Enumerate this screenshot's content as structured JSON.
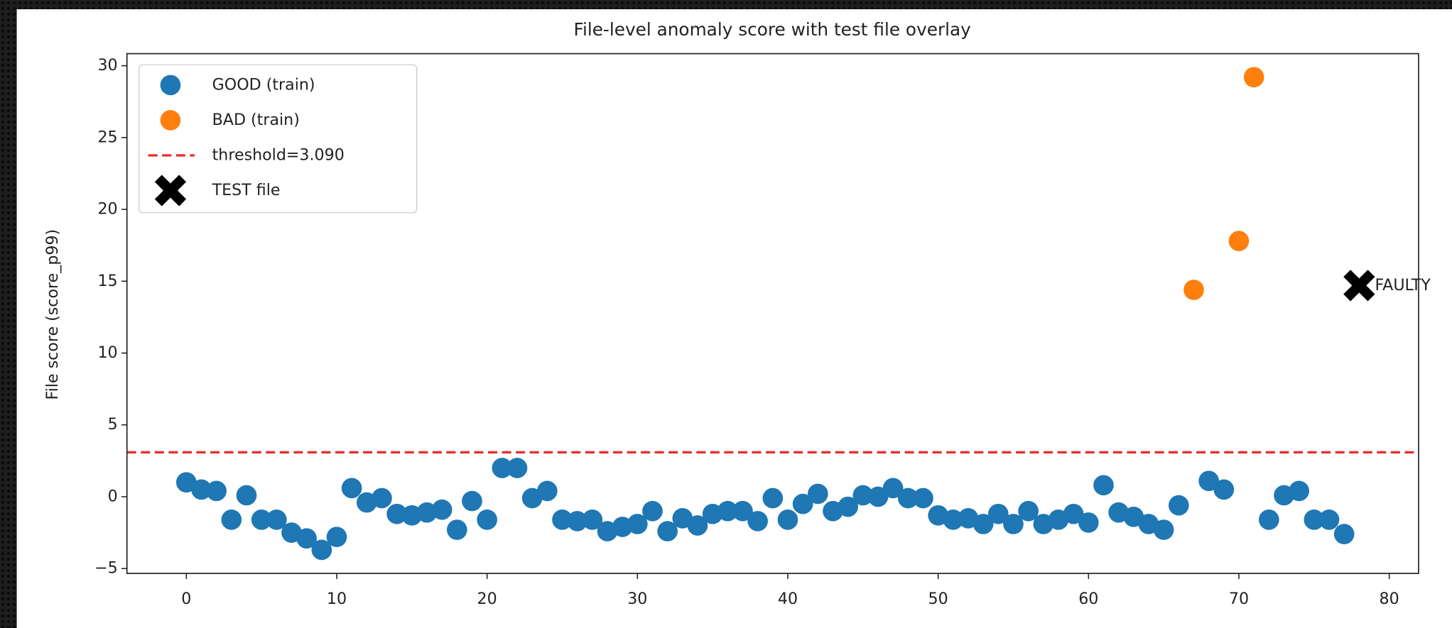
{
  "chart_data": {
    "type": "scatter",
    "title": "File-level anomaly score with test file overlay",
    "ylabel": "File score (score_p99)",
    "xlim": [
      -3.95,
      81.95
    ],
    "ylim": [
      -5.34,
      30.84
    ],
    "xticks": [
      0,
      10,
      20,
      30,
      40,
      50,
      60,
      70,
      80
    ],
    "yticks": [
      {
        "value": -5,
        "label": "−5"
      },
      0,
      5,
      10,
      15,
      20,
      25,
      30
    ],
    "series": [
      {
        "name": "GOOD (train)",
        "color": "#1f77b4",
        "x": [
          0,
          1,
          2,
          3,
          4,
          5,
          6,
          7,
          8,
          9,
          10,
          11,
          12,
          13,
          14,
          15,
          16,
          17,
          18,
          19,
          20,
          21,
          22,
          23,
          24,
          25,
          26,
          27,
          28,
          29,
          30,
          31,
          32,
          33,
          34,
          35,
          36,
          37,
          38,
          39,
          40,
          41,
          42,
          43,
          44,
          45,
          46,
          47,
          48,
          49,
          50,
          51,
          52,
          53,
          54,
          55,
          56,
          57,
          58,
          59,
          60,
          61,
          62,
          63,
          64,
          65,
          66,
          68,
          69,
          72,
          73,
          74,
          75,
          76,
          77
        ],
        "values": [
          1.0,
          0.5,
          0.4,
          -1.6,
          0.1,
          -1.6,
          -1.6,
          -2.5,
          -2.9,
          -3.7,
          -2.8,
          0.6,
          -0.4,
          -0.1,
          -1.2,
          -1.3,
          -1.1,
          -0.9,
          -2.3,
          -0.3,
          -1.6,
          2.0,
          2.0,
          -0.1,
          0.4,
          -1.6,
          -1.7,
          -1.6,
          -2.4,
          -2.1,
          -1.9,
          -1.0,
          -2.4,
          -1.5,
          -2.0,
          -1.2,
          -1.0,
          -1.0,
          -1.7,
          -0.1,
          -1.6,
          -0.5,
          0.2,
          -1.0,
          -0.7,
          0.1,
          0,
          0.6,
          -0.1,
          -0.1,
          -1.3,
          -1.6,
          -1.5,
          -1.9,
          -1.2,
          -1.9,
          -1.0,
          -1.9,
          -1.6,
          -1.2,
          -1.8,
          0.8,
          -1.1,
          -1.4,
          -1.9,
          -2.3,
          -0.6,
          1.1,
          0.5,
          -1.6,
          0.1,
          0.4,
          -1.6,
          -1.6,
          -2.6
        ]
      },
      {
        "name": "BAD (train)",
        "color": "#ff7f0e",
        "x": [
          67,
          70,
          71
        ],
        "values": [
          14.4,
          17.8,
          29.2
        ]
      },
      {
        "name": "TEST file",
        "color": "#000000",
        "marker": "X",
        "x": [
          78
        ],
        "values": [
          14.7
        ],
        "annotations": [
          "FAULTY"
        ]
      }
    ],
    "threshold": {
      "name": "threshold=3.090",
      "value": 3.09,
      "color": "#e8302c"
    }
  }
}
